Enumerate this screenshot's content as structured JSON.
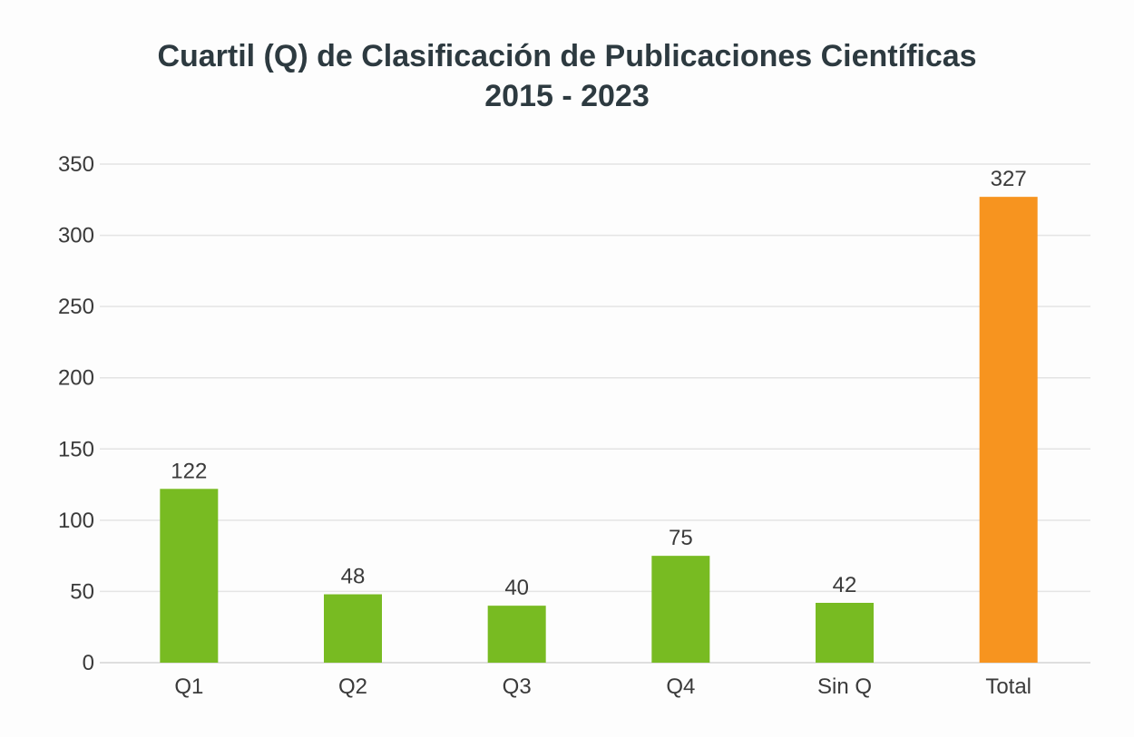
{
  "chart_data": {
    "type": "bar",
    "title": "Cuartil (Q) de Clasificación de Publicaciones Científicas",
    "subtitle": "2015 - 2023",
    "xlabel": "",
    "ylabel": "",
    "categories": [
      "Q1",
      "Q2",
      "Q3",
      "Q4",
      "Sin Q",
      "Total"
    ],
    "values": [
      122,
      48,
      40,
      75,
      42,
      327
    ],
    "data_labels": [
      "122",
      "48",
      "40",
      "75",
      "42",
      "327"
    ],
    "colors": [
      "#78bb22",
      "#78bb22",
      "#78bb22",
      "#78bb22",
      "#78bb22",
      "#f7941f"
    ],
    "ylim": [
      0,
      350
    ],
    "yticks": [
      0,
      50,
      100,
      150,
      200,
      250,
      300,
      350
    ],
    "ytick_labels": [
      "0",
      "50",
      "100",
      "150",
      "200",
      "250",
      "300",
      "350"
    ],
    "grid": true,
    "legend": "none"
  }
}
